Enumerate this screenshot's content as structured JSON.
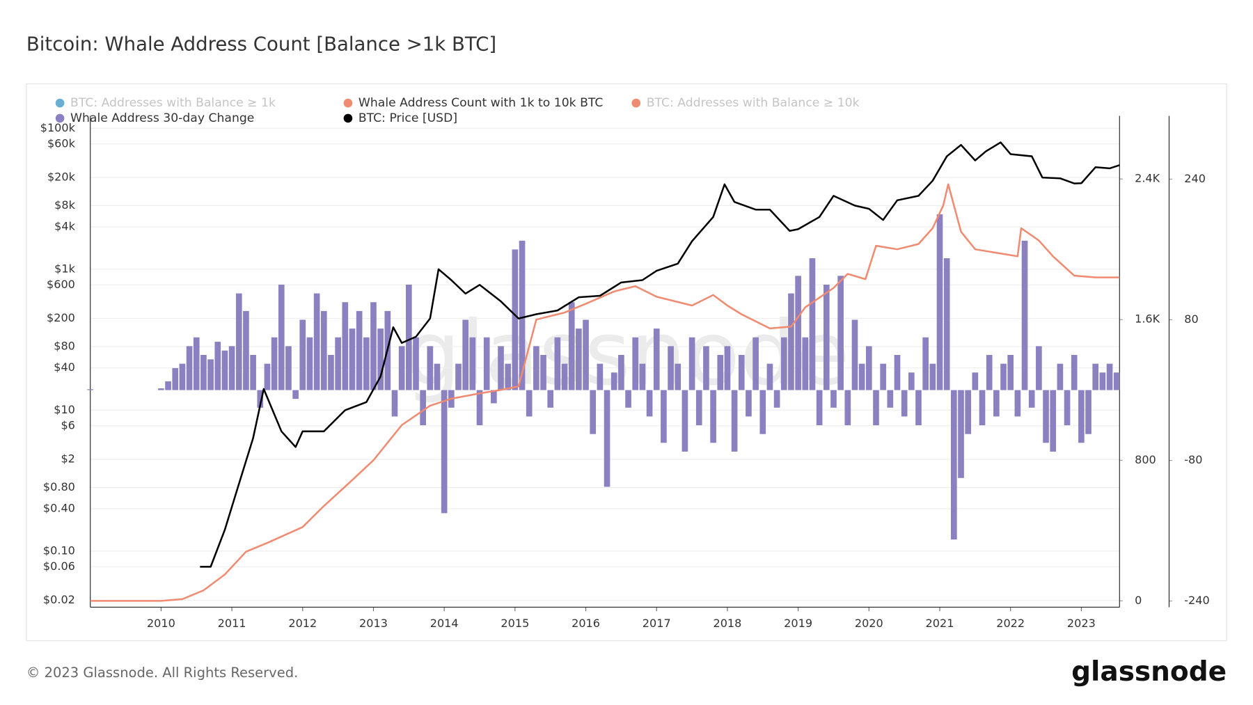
{
  "chart_data": {
    "type": "line",
    "title": "Bitcoin: Whale Address Count [Balance >1k BTC]",
    "watermark": "glassnode",
    "grid": true,
    "log_y": true,
    "xlim": [
      2009.0,
      2023.54
    ],
    "xticks": [
      2010,
      2011,
      2012,
      2013,
      2014,
      2015,
      2016,
      2017,
      2018,
      2019,
      2020,
      2021,
      2022,
      2023
    ],
    "ylim": [
      0.016,
      150000
    ],
    "yticks": [
      {
        "value": 100000,
        "label": "$100k"
      },
      {
        "value": 60000,
        "label": "$60k"
      },
      {
        "value": 20000,
        "label": "$20k"
      },
      {
        "value": 8000,
        "label": "$8k"
      },
      {
        "value": 4000,
        "label": "$4k"
      },
      {
        "value": 1000,
        "label": "$1k"
      },
      {
        "value": 600,
        "label": "$600"
      },
      {
        "value": 200,
        "label": "$200"
      },
      {
        "value": 80,
        "label": "$80"
      },
      {
        "value": 40,
        "label": "$40"
      },
      {
        "value": 10,
        "label": "$10"
      },
      {
        "value": 6,
        "label": "$6"
      },
      {
        "value": 2,
        "label": "$2"
      },
      {
        "value": 0.8,
        "label": "$0.80"
      },
      {
        "value": 0.4,
        "label": "$0.40"
      },
      {
        "value": 0.1,
        "label": "$0.10"
      },
      {
        "value": 0.06,
        "label": "$0.06"
      },
      {
        "value": 0.02,
        "label": "$0.02"
      }
    ],
    "y2lim": [
      -36,
      2759
    ],
    "y2ticks": [
      0,
      800,
      {
        "value": 1600,
        "label": "1.6K"
      },
      {
        "value": 2400,
        "label": "2.4K"
      }
    ],
    "y3lim": [
      -247,
      312
    ],
    "y3ticks": [
      -240,
      -80,
      80,
      240
    ],
    "series": [
      {
        "name": "BTC: Addresses with Balance ≥ 1k",
        "color": "#6aaed6",
        "hidden": true
      },
      {
        "name": "Whale Address Count with 1k to 10k BTC",
        "color": "#f08a70",
        "type": "line",
        "axis": "y2",
        "x": [
          2009.0,
          2010.0,
          2010.3,
          2010.6,
          2010.9,
          2011.2,
          2011.5,
          2012.0,
          2012.3,
          2012.6,
          2013.0,
          2013.4,
          2013.8,
          2014.1,
          2014.5,
          2014.8,
          2015.05,
          2015.3,
          2015.7,
          2016.0,
          2016.4,
          2016.7,
          2017.0,
          2017.5,
          2017.8,
          2018.0,
          2018.2,
          2018.6,
          2018.9,
          2019.1,
          2019.5,
          2019.7,
          2019.95,
          2020.1,
          2020.4,
          2020.7,
          2020.9,
          2021.05,
          2021.12,
          2021.3,
          2021.5,
          2021.8,
          2022.1,
          2022.15,
          2022.4,
          2022.6,
          2022.9,
          2023.2,
          2023.54
        ],
        "values": [
          0,
          0,
          10,
          60,
          150,
          280,
          330,
          420,
          540,
          650,
          800,
          1000,
          1110,
          1150,
          1180,
          1200,
          1220,
          1600,
          1640,
          1690,
          1760,
          1790,
          1730,
          1680,
          1740,
          1680,
          1630,
          1550,
          1560,
          1670,
          1780,
          1860,
          1830,
          2020,
          2000,
          2030,
          2120,
          2250,
          2370,
          2100,
          2000,
          1980,
          1960,
          2120,
          2050,
          1960,
          1850,
          1840,
          1840
        ]
      },
      {
        "name": "BTC: Addresses with Balance ≥ 10k",
        "color": "#f08a70",
        "hidden": true
      },
      {
        "name": "Whale Address 30-day Change",
        "color": "#8b80c0",
        "type": "bar",
        "axis": "y3",
        "x": [
          2009.0,
          2009.1,
          2009.2,
          2009.3,
          2009.4,
          2009.5,
          2009.6,
          2009.7,
          2009.8,
          2009.9,
          2010.0,
          2010.1,
          2010.2,
          2010.3,
          2010.4,
          2010.5,
          2010.6,
          2010.7,
          2010.8,
          2010.9,
          2011.0,
          2011.1,
          2011.2,
          2011.3,
          2011.4,
          2011.5,
          2011.6,
          2011.7,
          2011.8,
          2011.9,
          2012.0,
          2012.1,
          2012.2,
          2012.3,
          2012.4,
          2012.5,
          2012.6,
          2012.7,
          2012.8,
          2012.9,
          2013.0,
          2013.1,
          2013.2,
          2013.3,
          2013.4,
          2013.5,
          2013.6,
          2013.7,
          2013.8,
          2013.9,
          2014.0,
          2014.1,
          2014.2,
          2014.3,
          2014.4,
          2014.5,
          2014.6,
          2014.7,
          2014.8,
          2014.9,
          2015.0,
          2015.1,
          2015.2,
          2015.3,
          2015.4,
          2015.5,
          2015.6,
          2015.7,
          2015.8,
          2015.9,
          2016.0,
          2016.1,
          2016.2,
          2016.3,
          2016.4,
          2016.5,
          2016.6,
          2016.7,
          2016.8,
          2016.9,
          2017.0,
          2017.1,
          2017.2,
          2017.3,
          2017.4,
          2017.5,
          2017.6,
          2017.7,
          2017.8,
          2017.9,
          2018.0,
          2018.1,
          2018.2,
          2018.3,
          2018.4,
          2018.5,
          2018.6,
          2018.7,
          2018.8,
          2018.9,
          2019.0,
          2019.1,
          2019.2,
          2019.3,
          2019.4,
          2019.5,
          2019.6,
          2019.7,
          2019.8,
          2019.9,
          2020.0,
          2020.1,
          2020.2,
          2020.3,
          2020.4,
          2020.5,
          2020.6,
          2020.7,
          2020.8,
          2020.9,
          2021.0,
          2021.1,
          2021.2,
          2021.3,
          2021.4,
          2021.5,
          2021.6,
          2021.7,
          2021.8,
          2021.9,
          2022.0,
          2022.1,
          2022.2,
          2022.3,
          2022.4,
          2022.5,
          2022.6,
          2022.7,
          2022.8,
          2022.9,
          2023.0,
          2023.1,
          2023.2,
          2023.3,
          2023.4,
          2023.5
        ],
        "values": [
          1,
          0,
          0,
          0,
          0,
          0,
          0,
          0,
          0,
          0,
          2,
          10,
          25,
          30,
          50,
          60,
          40,
          35,
          55,
          45,
          50,
          110,
          90,
          40,
          -20,
          30,
          60,
          120,
          50,
          -10,
          80,
          60,
          110,
          90,
          40,
          60,
          100,
          70,
          90,
          60,
          100,
          70,
          90,
          -30,
          50,
          120,
          60,
          -40,
          50,
          30,
          -140,
          -20,
          30,
          80,
          60,
          -40,
          60,
          -15,
          50,
          30,
          160,
          170,
          -30,
          50,
          40,
          -20,
          60,
          30,
          100,
          70,
          80,
          -50,
          30,
          -110,
          20,
          40,
          -20,
          60,
          30,
          -30,
          70,
          -60,
          50,
          30,
          -70,
          60,
          -40,
          50,
          -60,
          40,
          50,
          -70,
          40,
          -30,
          60,
          -50,
          30,
          -20,
          60,
          110,
          130,
          60,
          150,
          -40,
          120,
          -20,
          130,
          -40,
          80,
          30,
          50,
          -40,
          30,
          -20,
          40,
          -30,
          20,
          -40,
          60,
          30,
          200,
          150,
          -170,
          -100,
          -50,
          20,
          -40,
          40,
          -30,
          30,
          40,
          -30,
          170,
          -20,
          50,
          -60,
          -70,
          30,
          -40,
          40,
          -60,
          -50,
          30,
          20,
          30,
          20
        ]
      },
      {
        "name": "BTC: Price [USD]",
        "color": "#000000",
        "type": "line",
        "axis": "y",
        "x": [
          2010.55,
          2010.7,
          2010.9,
          2011.1,
          2011.3,
          2011.45,
          2011.7,
          2011.9,
          2012.0,
          2012.3,
          2012.6,
          2012.9,
          2013.1,
          2013.28,
          2013.4,
          2013.6,
          2013.8,
          2013.92,
          2014.1,
          2014.3,
          2014.5,
          2014.8,
          2015.05,
          2015.3,
          2015.6,
          2015.9,
          2016.2,
          2016.5,
          2016.8,
          2017.0,
          2017.3,
          2017.5,
          2017.8,
          2017.96,
          2018.1,
          2018.4,
          2018.6,
          2018.88,
          2019.0,
          2019.3,
          2019.5,
          2019.8,
          2020.0,
          2020.2,
          2020.4,
          2020.7,
          2020.9,
          2021.1,
          2021.3,
          2021.5,
          2021.65,
          2021.86,
          2022.0,
          2022.3,
          2022.45,
          2022.7,
          2022.9,
          2023.0,
          2023.2,
          2023.4,
          2023.54
        ],
        "values": [
          0.06,
          0.06,
          0.2,
          0.9,
          4,
          20,
          5,
          3,
          5,
          5,
          10,
          13,
          30,
          150,
          90,
          110,
          200,
          1000,
          700,
          450,
          600,
          350,
          200,
          230,
          260,
          400,
          420,
          650,
          700,
          950,
          1200,
          2500,
          5500,
          16000,
          9000,
          7000,
          7000,
          3500,
          3700,
          5500,
          11000,
          8000,
          7200,
          5000,
          9500,
          11000,
          18000,
          40000,
          58000,
          35000,
          47000,
          63000,
          43000,
          40000,
          20000,
          19500,
          16500,
          16600,
          28000,
          27000,
          30000
        ]
      }
    ]
  },
  "footer": {
    "copyright": "© 2023 Glassnode. All Rights Reserved.",
    "logo": "glassnode"
  }
}
